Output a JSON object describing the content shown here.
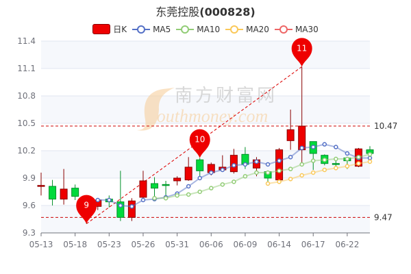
{
  "title": {
    "name": "东莞控股",
    "code": "(000828)"
  },
  "legend": [
    {
      "label": "日K",
      "color": "#ee0000"
    },
    {
      "label": "MA5",
      "color": "#5470c6"
    },
    {
      "label": "MA10",
      "color": "#91cc75"
    },
    {
      "label": "MA20",
      "color": "#fac858"
    },
    {
      "label": "MA30",
      "color": "#ee6666"
    }
  ],
  "watermark": {
    "cn": "南方财富网",
    "en": "Southmoney.com"
  },
  "chart_data": {
    "type": "candlestick",
    "title": "东莞控股(000828)",
    "ylim": [
      9.3,
      11.4
    ],
    "yticks": [
      9.3,
      9.6,
      9.9,
      10.2,
      10.5,
      10.8,
      11.1,
      11.4
    ],
    "xtick_labels": [
      "05-13",
      "05-18",
      "05-23",
      "05-26",
      "05-31",
      "06-06",
      "06-09",
      "06-14",
      "06-17",
      "06-22"
    ],
    "grid": true,
    "legend_position": "top",
    "candles": [
      {
        "o": 9.82,
        "c": 9.82,
        "h": 9.96,
        "l": 9.71
      },
      {
        "o": 9.81,
        "c": 9.67,
        "h": 9.88,
        "l": 9.6
      },
      {
        "o": 9.67,
        "c": 9.78,
        "h": 10.0,
        "l": 9.61
      },
      {
        "o": 9.79,
        "c": 9.7,
        "h": 9.83,
        "l": 9.66
      },
      {
        "o": 9.68,
        "c": 9.62,
        "h": 9.69,
        "l": 9.4
      },
      {
        "o": 9.59,
        "c": 9.66,
        "h": 9.67,
        "l": 9.55
      },
      {
        "o": 9.67,
        "c": 9.64,
        "h": 9.71,
        "l": 9.58
      },
      {
        "o": 9.64,
        "c": 9.47,
        "h": 9.98,
        "l": 9.43
      },
      {
        "o": 9.47,
        "c": 9.65,
        "h": 9.68,
        "l": 9.43
      },
      {
        "o": 9.69,
        "c": 9.87,
        "h": 9.98,
        "l": 9.65
      },
      {
        "o": 9.84,
        "c": 9.79,
        "h": 9.91,
        "l": 9.67
      },
      {
        "o": 9.83,
        "c": 9.82,
        "h": 9.87,
        "l": 9.71
      },
      {
        "o": 9.87,
        "c": 9.9,
        "h": 9.92,
        "l": 9.82
      },
      {
        "o": 9.88,
        "c": 10.02,
        "h": 10.13,
        "l": 9.87
      },
      {
        "o": 10.1,
        "c": 9.98,
        "h": 10.12,
        "l": 9.88
      },
      {
        "o": 9.96,
        "c": 10.05,
        "h": 10.07,
        "l": 9.93
      },
      {
        "o": 9.99,
        "c": 10.02,
        "h": 10.15,
        "l": 9.97
      },
      {
        "o": 9.97,
        "c": 10.15,
        "h": 10.22,
        "l": 9.95
      },
      {
        "o": 10.16,
        "c": 10.05,
        "h": 10.24,
        "l": 10.0
      },
      {
        "o": 10.01,
        "c": 10.1,
        "h": 10.13,
        "l": 9.92
      },
      {
        "o": 9.97,
        "c": 9.9,
        "h": 9.98,
        "l": 9.84
      },
      {
        "o": 9.88,
        "c": 10.21,
        "h": 10.23,
        "l": 9.84
      },
      {
        "o": 10.31,
        "c": 10.43,
        "h": 10.65,
        "l": 10.21
      },
      {
        "o": 10.21,
        "c": 10.47,
        "h": 11.12,
        "l": 10.04
      },
      {
        "o": 10.3,
        "c": 10.17,
        "h": 10.3,
        "l": 9.99
      },
      {
        "o": 10.15,
        "c": 10.06,
        "h": 10.16,
        "l": 10.04
      },
      {
        "o": 10.06,
        "c": 10.05,
        "h": 10.1,
        "l": 10.01
      },
      {
        "o": 10.12,
        "c": 10.09,
        "h": 10.13,
        "l": 10.0
      },
      {
        "o": 10.03,
        "c": 10.22,
        "h": 10.23,
        "l": 10.02
      },
      {
        "o": 10.21,
        "c": 10.17,
        "h": 10.25,
        "l": 10.15
      }
    ],
    "series": [
      {
        "name": "MA5",
        "start": 5,
        "values": [
          9.66,
          9.66,
          9.6,
          9.59,
          9.66,
          9.67,
          9.69,
          9.73,
          9.81,
          9.9,
          9.96,
          9.99,
          10.04,
          10.05,
          10.08,
          10.05,
          10.09,
          10.13,
          10.23,
          10.24,
          10.27,
          10.24,
          10.17,
          10.12,
          10.12
        ]
      },
      {
        "name": "MA10",
        "start": 10,
        "values": [
          9.68,
          9.68,
          9.71,
          9.72,
          9.75,
          9.79,
          9.83,
          9.86,
          9.92,
          9.96,
          9.96,
          9.98,
          10.0,
          10.05,
          10.09,
          10.1,
          10.11,
          10.11,
          10.13,
          10.16
        ]
      },
      {
        "name": "MA20",
        "start": 20,
        "values": [
          9.84,
          9.86,
          9.89,
          9.93,
          9.96,
          9.99,
          10.01,
          10.03,
          10.06,
          10.08
        ]
      },
      {
        "name": "MA30",
        "start": 30,
        "values": []
      }
    ],
    "mark_lines": [
      {
        "value": 10.47,
        "label": "10.47"
      },
      {
        "value": 9.47,
        "label": "9.47"
      }
    ],
    "mark_points": [
      {
        "label": "9",
        "index": 4,
        "value": 9.4
      },
      {
        "label": "10",
        "index": 14,
        "value": 10.12
      },
      {
        "label": "11",
        "index": 23,
        "value": 11.12
      }
    ],
    "trend_line": {
      "from": {
        "index": 4,
        "value": 9.4
      },
      "to": {
        "index": 23,
        "value": 11.12
      }
    },
    "colors": {
      "up": "#ee0000",
      "down": "#00da3c",
      "up_border": "#8a0000",
      "down_border": "#008f28"
    }
  }
}
